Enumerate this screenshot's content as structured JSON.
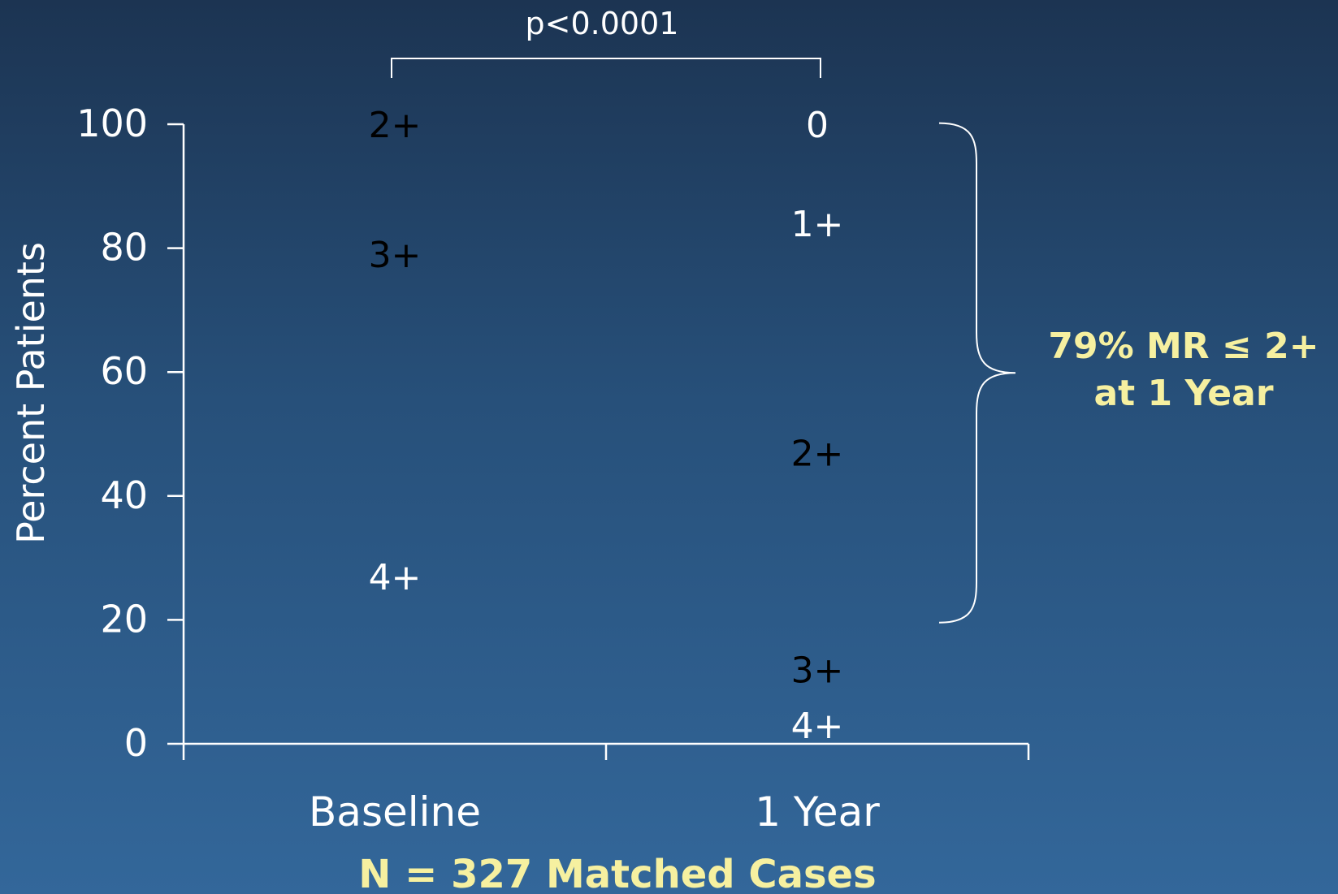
{
  "chart_data": {
    "type": "table",
    "ylabel": "Percent Patients",
    "ylim": [
      0,
      100
    ],
    "yticks": [
      "0",
      "20",
      "40",
      "60",
      "80",
      "100"
    ],
    "categories": [
      "Baseline",
      "1 Year"
    ],
    "grades": [
      {
        "category": "Baseline",
        "label": "2+",
        "y": 100
      },
      {
        "category": "Baseline",
        "label": "3+",
        "y": 79
      },
      {
        "category": "Baseline",
        "label": "4+",
        "y": 27
      },
      {
        "category": "1 Year",
        "label": "0",
        "y": 100
      },
      {
        "category": "1 Year",
        "label": "1+",
        "y": 84
      },
      {
        "category": "1 Year",
        "label": "2+",
        "y": 47
      },
      {
        "category": "1 Year",
        "label": "3+",
        "y": 12
      },
      {
        "category": "1 Year",
        "label": "4+",
        "y": 3
      }
    ],
    "significance": "p<0.0001",
    "brace_range": [
      21,
      99
    ],
    "brace_annotation": [
      "79% MR ≤ 2+",
      "at 1 Year"
    ],
    "footnote": "N = 327 Matched Cases",
    "colors": {
      "axis": "#ffffff",
      "highlight": "#f6f0a0",
      "dark_label": "#000000",
      "light_label": "#ffffff"
    }
  }
}
